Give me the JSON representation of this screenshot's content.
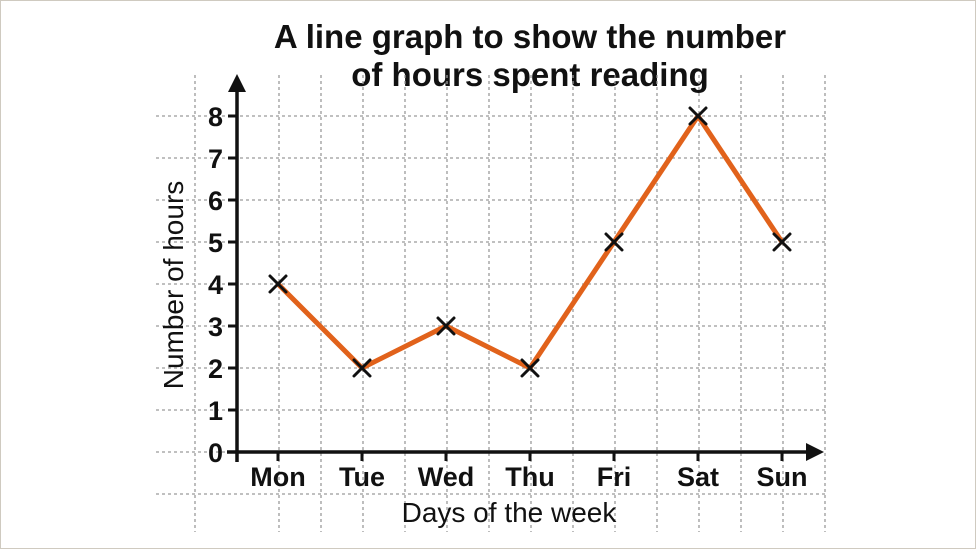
{
  "chart_data": {
    "type": "line",
    "title_line1": "A line graph to show the number",
    "title_line2": "of hours spent reading",
    "xlabel": "Days of the week",
    "ylabel": "Number of hours",
    "categories": [
      "Mon",
      "Tue",
      "Wed",
      "Thu",
      "Fri",
      "Sat",
      "Sun"
    ],
    "series": [
      {
        "values": [
          4,
          2,
          3,
          2,
          5,
          8,
          5
        ]
      }
    ],
    "yticks": [
      0,
      1,
      2,
      3,
      4,
      5,
      6,
      7,
      8
    ],
    "ylim": [
      0,
      8
    ],
    "grid": true,
    "marker": "x",
    "line_color": "#e1621b",
    "marker_color": "#111111",
    "axis_color": "#111111",
    "grid_color": "#9a9a9a"
  }
}
